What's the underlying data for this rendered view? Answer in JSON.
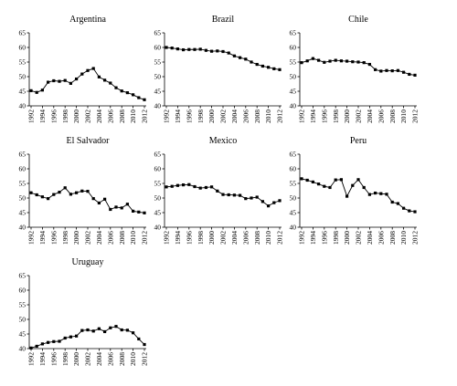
{
  "chart_data": [
    {
      "type": "line",
      "title": "Argentina",
      "x": [
        1992,
        1993,
        1994,
        1995,
        1996,
        1997,
        1998,
        1999,
        2000,
        2001,
        2002,
        2003,
        2004,
        2005,
        2006,
        2007,
        2008,
        2009,
        2010,
        2011,
        2012
      ],
      "values": [
        45.2,
        44.6,
        45.4,
        48.1,
        48.6,
        48.4,
        48.7,
        47.7,
        49.2,
        50.9,
        52.1,
        52.8,
        49.9,
        48.8,
        47.8,
        46.2,
        45.1,
        44.5,
        43.8,
        42.8,
        42.1
      ],
      "ylim": [
        40,
        65
      ],
      "yticks": [
        40,
        45,
        50,
        55,
        60,
        65
      ],
      "xticks": [
        1992,
        1994,
        1996,
        1998,
        2000,
        2002,
        2004,
        2006,
        2008,
        2010,
        2012
      ],
      "grid": false
    },
    {
      "type": "line",
      "title": "Brazil",
      "x": [
        1992,
        1993,
        1994,
        1995,
        1996,
        1997,
        1998,
        1999,
        2000,
        2001,
        2002,
        2003,
        2004,
        2005,
        2006,
        2007,
        2008,
        2009,
        2010,
        2011,
        2012
      ],
      "values": [
        60.0,
        59.8,
        59.5,
        59.2,
        59.3,
        59.3,
        59.4,
        59.0,
        58.7,
        58.8,
        58.6,
        58.1,
        57.1,
        56.5,
        56.0,
        55.0,
        54.2,
        53.6,
        53.2,
        52.7,
        52.4
      ],
      "ylim": [
        40,
        65
      ],
      "yticks": [
        40,
        45,
        50,
        55,
        60,
        65
      ],
      "xticks": [
        1992,
        1994,
        1996,
        1998,
        2000,
        2002,
        2004,
        2006,
        2008,
        2010,
        2012
      ],
      "grid": false
    },
    {
      "type": "line",
      "title": "Chile",
      "x": [
        1992,
        1993,
        1994,
        1995,
        1996,
        1997,
        1998,
        1999,
        2000,
        2001,
        2002,
        2003,
        2004,
        2005,
        2006,
        2007,
        2008,
        2009,
        2010,
        2011,
        2012
      ],
      "values": [
        54.8,
        55.4,
        56.2,
        55.6,
        54.9,
        55.3,
        55.6,
        55.4,
        55.3,
        55.1,
        55.0,
        54.8,
        54.2,
        52.4,
        51.9,
        52.1,
        52.0,
        52.1,
        51.5,
        50.8,
        50.5
      ],
      "ylim": [
        40,
        65
      ],
      "yticks": [
        40,
        45,
        50,
        55,
        60,
        65
      ],
      "xticks": [
        1992,
        1994,
        1996,
        1998,
        2000,
        2002,
        2004,
        2006,
        2008,
        2010,
        2012
      ],
      "grid": false
    },
    {
      "type": "line",
      "title": "El Salvador",
      "x": [
        1992,
        1993,
        1994,
        1995,
        1996,
        1997,
        1998,
        1999,
        2000,
        2001,
        2002,
        2003,
        2004,
        2005,
        2006,
        2007,
        2008,
        2009,
        2010,
        2011,
        2012
      ],
      "values": [
        51.8,
        51.1,
        50.4,
        49.8,
        51.2,
        52.0,
        53.5,
        51.3,
        51.8,
        52.4,
        52.3,
        49.8,
        48.3,
        49.6,
        46.1,
        46.9,
        46.6,
        47.9,
        45.5,
        45.2,
        44.9
      ],
      "ylim": [
        40,
        65
      ],
      "yticks": [
        40,
        45,
        50,
        55,
        60,
        65
      ],
      "xticks": [
        1992,
        1994,
        1996,
        1998,
        2000,
        2002,
        2004,
        2006,
        2008,
        2010,
        2012
      ],
      "grid": false
    },
    {
      "type": "line",
      "title": "Mexico",
      "x": [
        1992,
        1993,
        1994,
        1995,
        1996,
        1997,
        1998,
        1999,
        2000,
        2001,
        2002,
        2003,
        2004,
        2005,
        2006,
        2007,
        2008,
        2009,
        2010,
        2011,
        2012
      ],
      "values": [
        53.8,
        54.0,
        54.3,
        54.5,
        54.6,
        53.9,
        53.4,
        53.6,
        53.8,
        52.4,
        51.2,
        51.1,
        51.0,
        50.9,
        49.8,
        50.0,
        50.3,
        48.8,
        47.3,
        48.4,
        49.1
      ],
      "ylim": [
        40,
        65
      ],
      "yticks": [
        40,
        45,
        50,
        55,
        60,
        65
      ],
      "xticks": [
        1992,
        1994,
        1996,
        1998,
        2000,
        2002,
        2004,
        2006,
        2008,
        2010,
        2012
      ],
      "grid": false
    },
    {
      "type": "line",
      "title": "Peru",
      "x": [
        1992,
        1993,
        1994,
        1995,
        1996,
        1997,
        1998,
        1999,
        2000,
        2001,
        2002,
        2003,
        2004,
        2005,
        2006,
        2007,
        2008,
        2009,
        2010,
        2011,
        2012
      ],
      "values": [
        56.6,
        56.1,
        55.5,
        54.8,
        54.0,
        53.6,
        56.2,
        56.3,
        50.6,
        54.3,
        56.3,
        53.6,
        51.2,
        51.7,
        51.5,
        51.3,
        48.6,
        48.1,
        46.5,
        45.6,
        45.3
      ],
      "ylim": [
        40,
        65
      ],
      "yticks": [
        40,
        45,
        50,
        55,
        60,
        65
      ],
      "xticks": [
        1992,
        1994,
        1996,
        1998,
        2000,
        2002,
        2004,
        2006,
        2008,
        2010,
        2012
      ],
      "grid": false
    },
    {
      "type": "line",
      "title": "Uruguay",
      "x": [
        1992,
        1993,
        1994,
        1995,
        1996,
        1997,
        1998,
        1999,
        2000,
        2001,
        2002,
        2003,
        2004,
        2005,
        2006,
        2007,
        2008,
        2009,
        2010,
        2011,
        2012
      ],
      "values": [
        40.2,
        40.8,
        41.6,
        42.1,
        42.4,
        42.5,
        43.6,
        44.0,
        44.3,
        46.2,
        46.4,
        46.0,
        46.8,
        45.8,
        47.1,
        47.6,
        46.4,
        46.3,
        45.4,
        43.3,
        41.4
      ],
      "ylim": [
        40,
        65
      ],
      "yticks": [
        40,
        45,
        50,
        55,
        60,
        65
      ],
      "xticks": [
        1992,
        1994,
        1996,
        1998,
        2000,
        2002,
        2004,
        2006,
        2008,
        2010,
        2012
      ],
      "grid": false
    }
  ]
}
